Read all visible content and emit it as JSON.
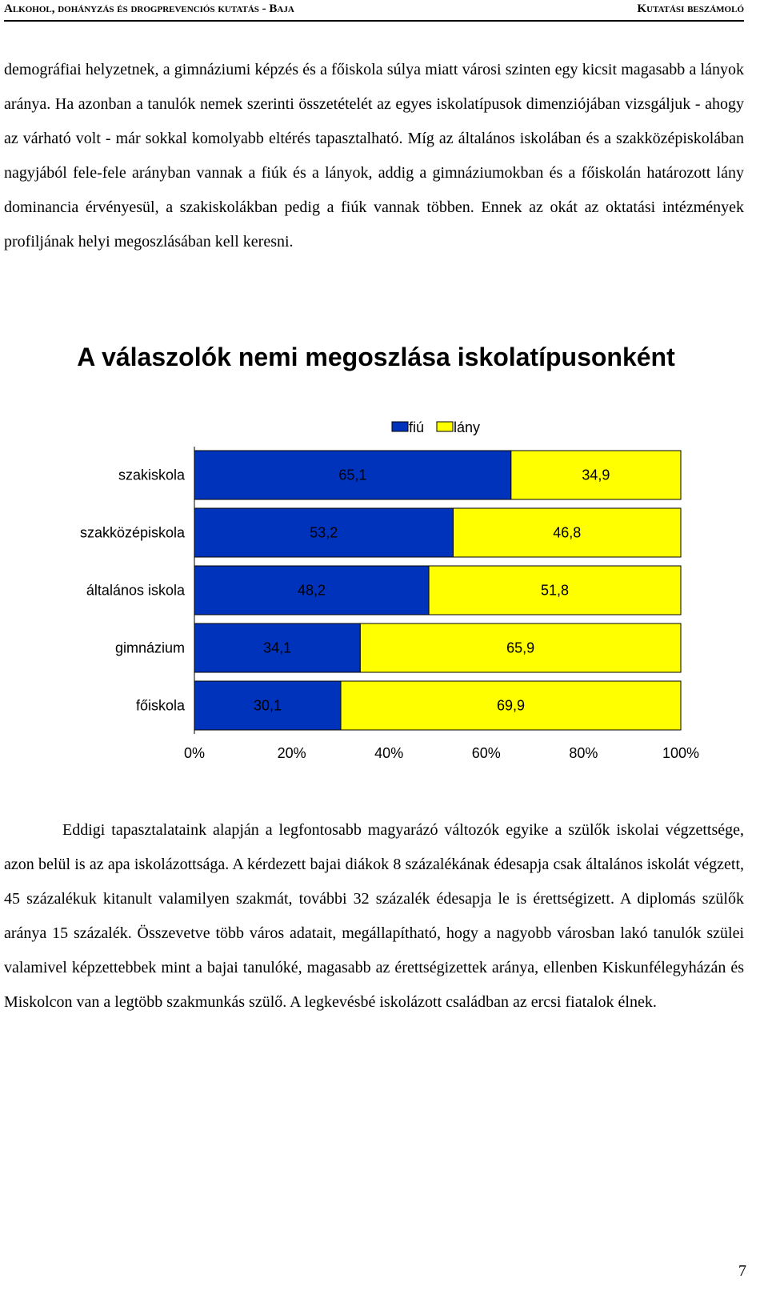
{
  "header": {
    "left": "Alkohol, dohányzás és drogprevenciós kutatás - Baja",
    "right": "Kutatási beszámoló"
  },
  "paragraphs": [
    "demográfiai helyzetnek, a gimnáziumi képzés és a főiskola súlya miatt városi szinten egy kicsit magasabb a lányok aránya. Ha azonban a tanulók nemek szerinti összetételét az egyes iskolatípusok dimenziójában vizsgáljuk - ahogy az várható volt - már sokkal komolyabb eltérés tapasztalható. Míg az általános iskolában és a szakközépiskolában nagyjából fele-fele arányban vannak a fiúk és a lányok, addig a gimnáziumokban és a főiskolán határozott lány dominancia érvényesül, a szakiskolákban pedig a fiúk vannak többen. Ennek az okát az oktatási intézmények profiljának helyi megoszlásában kell keresni.",
    "Eddigi tapasztalataink alapján a legfontosabb magyarázó változók egyike a szülők iskolai végzettsége, azon belül is az apa iskolázottsága. A kérdezett bajai diákok 8 százalékának édesapja csak általános iskolát végzett, 45 százalékuk kitanult valamilyen szakmát, további 32 százalék édesapja le is érettségizett. A diplomás szülők aránya 15 százalék. Összevetve több város adatait, megállapítható, hogy a nagyobb városban lakó tanulók szülei valamivel képzettebbek mint a bajai tanulóké, magasabb az érettségizettek aránya, ellenben Kiskunfélegyházán és Miskolcon van a legtöbb szakmunkás szülő. A legkevésbé iskolázott családban az ercsi fiatalok élnek."
  ],
  "chart_data": {
    "type": "bar",
    "orientation": "horizontal",
    "stacked": "100%",
    "title": "A válaszolók nemi megoszlása iskolatípusonként",
    "categories": [
      "szakiskola",
      "szakközépiskola",
      "általános iskola",
      "gimnázium",
      "főiskola"
    ],
    "series": [
      {
        "name": "fiú",
        "color": "#0033bb",
        "values": [
          65.1,
          53.2,
          48.2,
          34.1,
          30.1
        ],
        "labels": [
          "65,1",
          "53,2",
          "48,2",
          "34,1",
          "30,1"
        ]
      },
      {
        "name": "lány",
        "color": "#ffff00",
        "values": [
          34.9,
          46.8,
          51.8,
          65.9,
          69.9
        ],
        "labels": [
          "34,9",
          "46,8",
          "51,8",
          "65,9",
          "69,9"
        ]
      }
    ],
    "xlim": [
      0,
      100
    ],
    "xticks": [
      "0%",
      "20%",
      "40%",
      "60%",
      "80%",
      "100%"
    ],
    "legend_position": "top-right",
    "grid": false
  },
  "page_number": "7"
}
